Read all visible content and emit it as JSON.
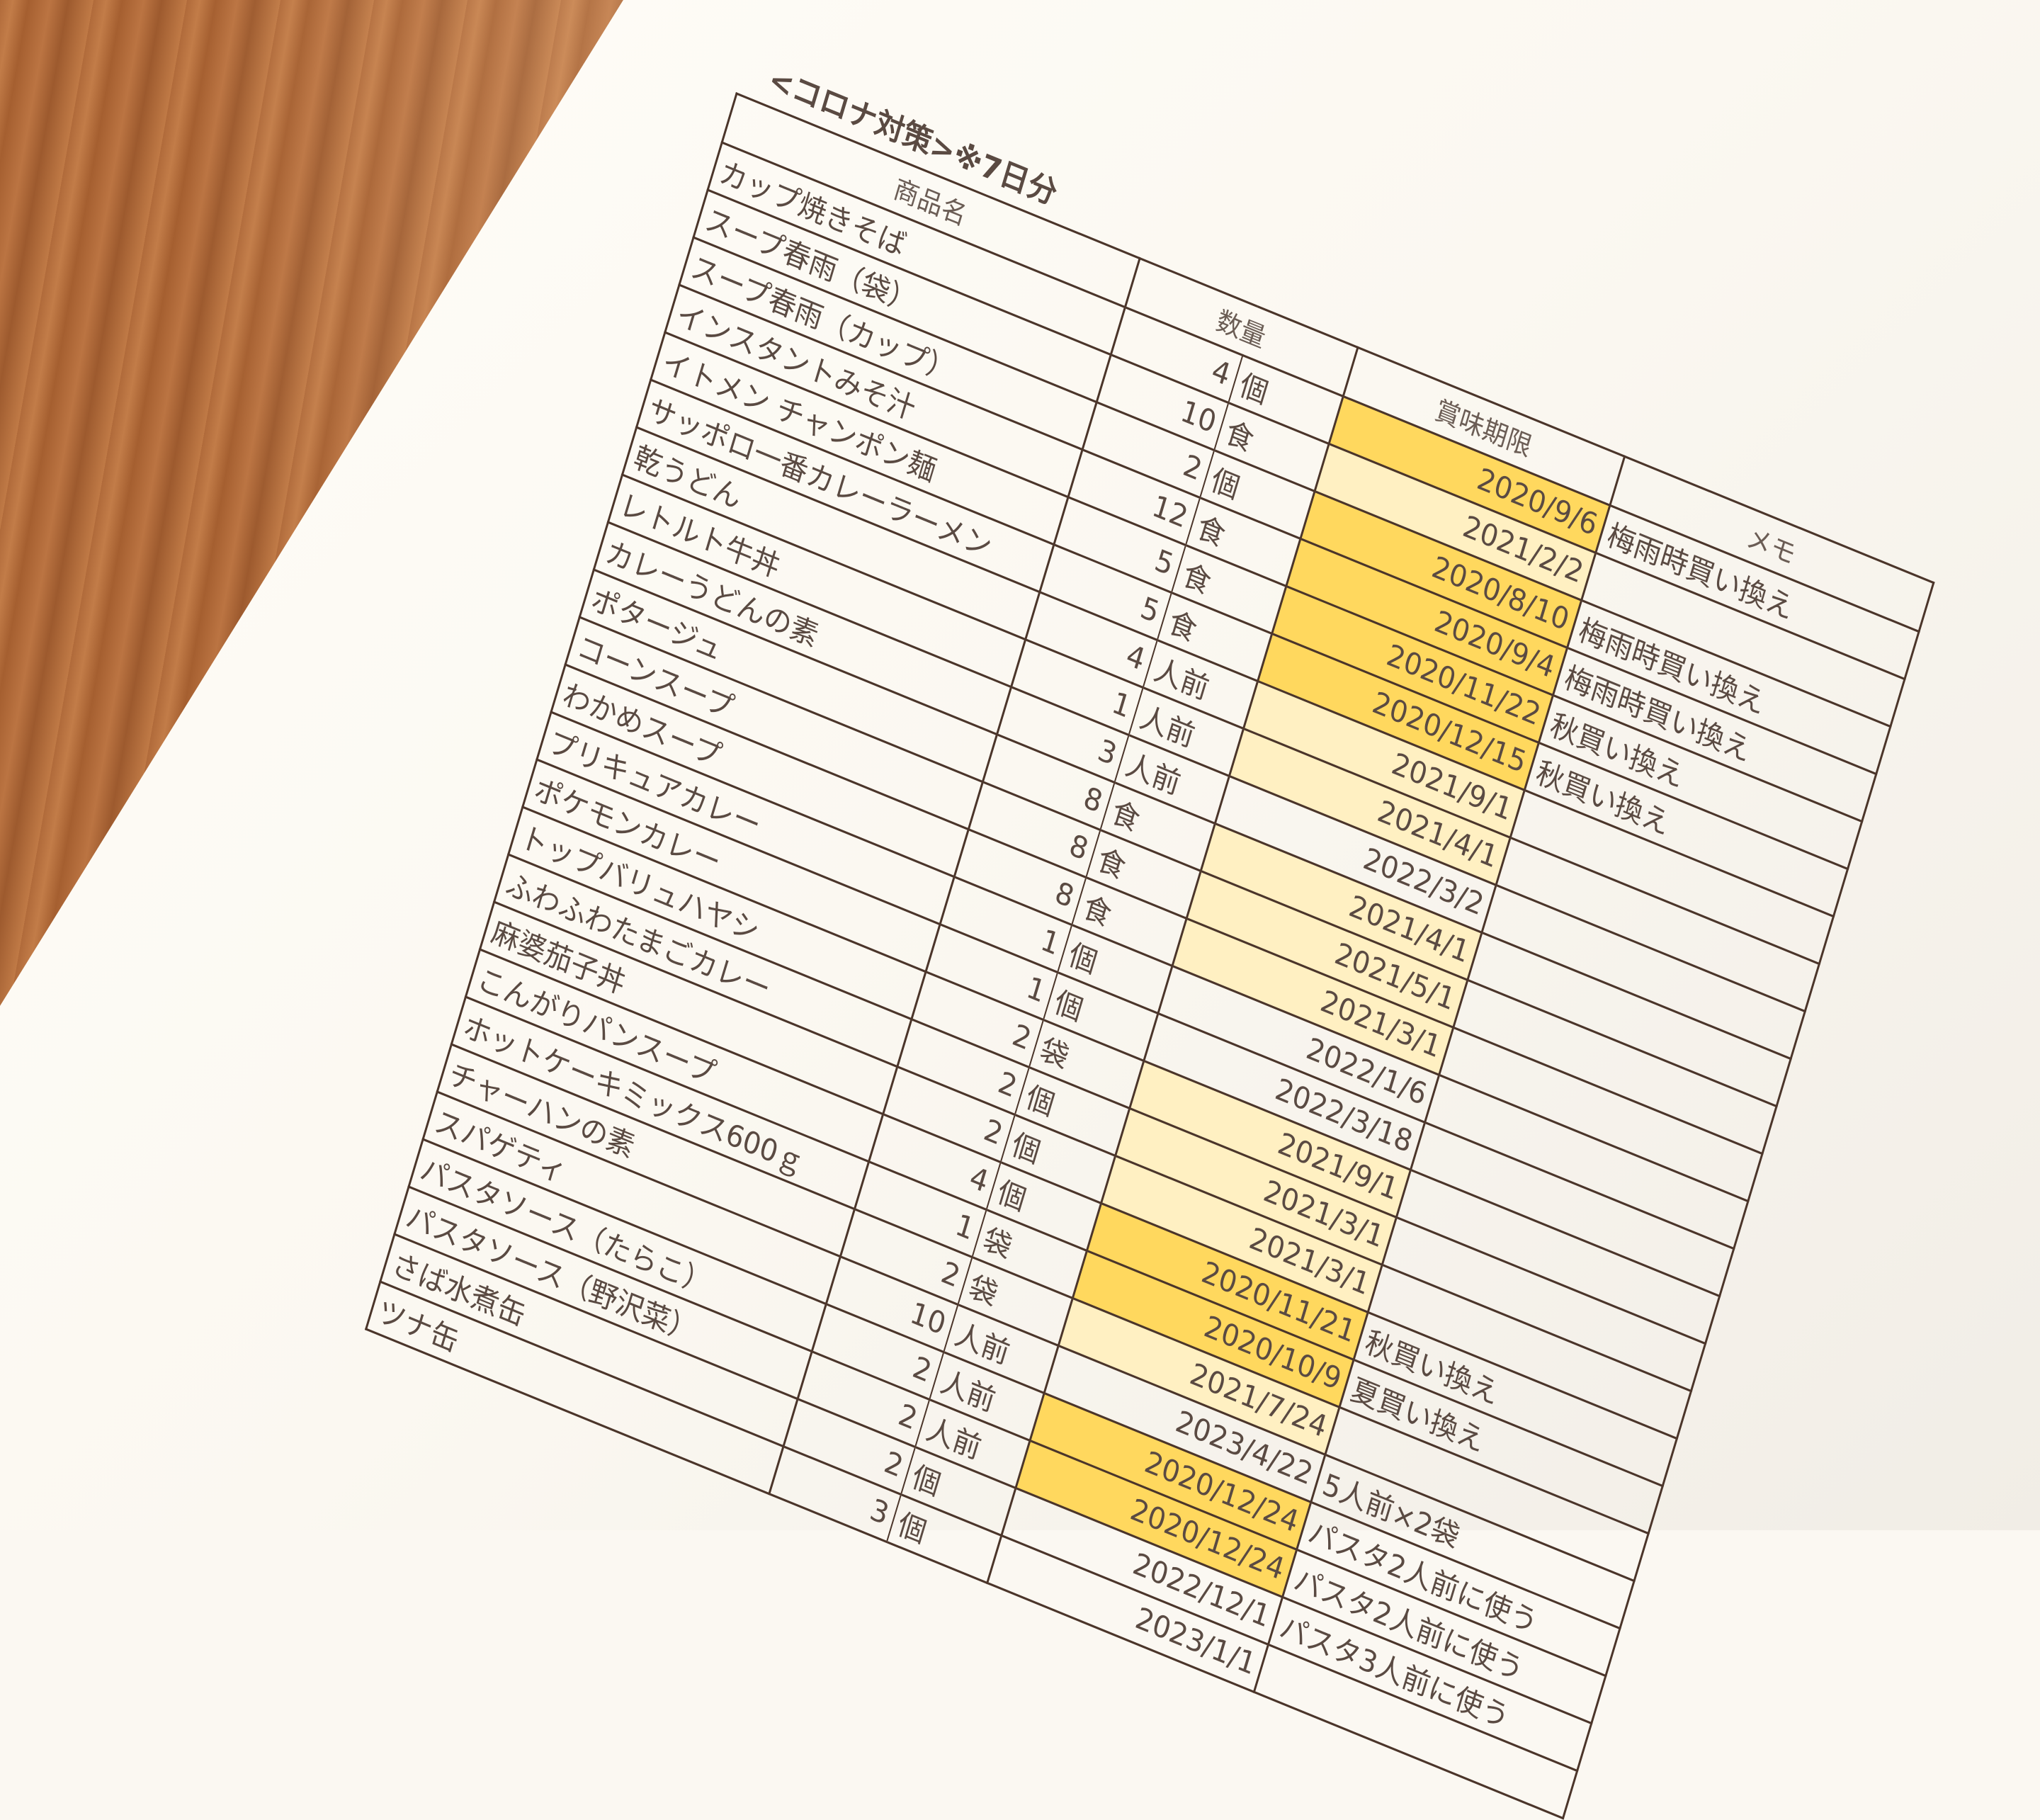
{
  "document": {
    "title": "<コロナ対策>※7日分",
    "headers": {
      "item": "商品名",
      "quantity": "数量",
      "expiry": "賞味期限",
      "memo": "メモ"
    },
    "highlight_colors": {
      "expired_soon": "#ffd85e",
      "light": "#fff0c2"
    },
    "rows": [
      {
        "item": "カップ焼きそば",
        "qty": "4",
        "unit": "個",
        "expiry": "2020/9/6",
        "memo": "梅雨時買い換え",
        "hl": 2
      },
      {
        "item": "スープ春雨（袋）",
        "qty": "10",
        "unit": "食",
        "expiry": "2021/2/2",
        "memo": "",
        "hl": 1
      },
      {
        "item": "スープ春雨（カップ）",
        "qty": "2",
        "unit": "個",
        "expiry": "2020/8/10",
        "memo": "梅雨時買い換え",
        "hl": 2
      },
      {
        "item": "インスタントみそ汁",
        "qty": "12",
        "unit": "食",
        "expiry": "2020/9/4",
        "memo": "梅雨時買い換え",
        "hl": 2
      },
      {
        "item": "イトメン チャンポン麺",
        "qty": "5",
        "unit": "食",
        "expiry": "2020/11/22",
        "memo": "秋買い換え",
        "hl": 2
      },
      {
        "item": "サッポロ一番カレーラーメン",
        "qty": "5",
        "unit": "食",
        "expiry": "2020/12/15",
        "memo": "秋買い換え",
        "hl": 2
      },
      {
        "item": "乾うどん",
        "qty": "4",
        "unit": "人前",
        "expiry": "2021/9/1",
        "memo": "",
        "hl": 1
      },
      {
        "item": "レトルト牛丼",
        "qty": "1",
        "unit": "人前",
        "expiry": "2021/4/1",
        "memo": "",
        "hl": 1
      },
      {
        "item": "カレーうどんの素",
        "qty": "3",
        "unit": "人前",
        "expiry": "2022/3/2",
        "memo": "",
        "hl": 0
      },
      {
        "item": "ポタージュ",
        "qty": "8",
        "unit": "食",
        "expiry": "2021/4/1",
        "memo": "",
        "hl": 1
      },
      {
        "item": "コーンスープ",
        "qty": "8",
        "unit": "食",
        "expiry": "2021/5/1",
        "memo": "",
        "hl": 1
      },
      {
        "item": "わかめスープ",
        "qty": "8",
        "unit": "食",
        "expiry": "2021/3/1",
        "memo": "",
        "hl": 1
      },
      {
        "item": "プリキュアカレー",
        "qty": "1",
        "unit": "個",
        "expiry": "2022/1/6",
        "memo": "",
        "hl": 0
      },
      {
        "item": "ポケモンカレー",
        "qty": "1",
        "unit": "個",
        "expiry": "2022/3/18",
        "memo": "",
        "hl": 0
      },
      {
        "item": "トップバリュハヤシ",
        "qty": "2",
        "unit": "袋",
        "expiry": "2021/9/1",
        "memo": "",
        "hl": 1
      },
      {
        "item": "ふわふわたまごカレー",
        "qty": "2",
        "unit": "個",
        "expiry": "2021/3/1",
        "memo": "",
        "hl": 1
      },
      {
        "item": "麻婆茄子丼",
        "qty": "2",
        "unit": "個",
        "expiry": "2021/3/1",
        "memo": "",
        "hl": 1
      },
      {
        "item": "こんがりパンスープ",
        "qty": "4",
        "unit": "個",
        "expiry": "2020/11/21",
        "memo": "秋買い換え",
        "hl": 2
      },
      {
        "item": "ホットケーキミックス600ｇ",
        "qty": "1",
        "unit": "袋",
        "expiry": "2020/10/9",
        "memo": "夏買い換え",
        "hl": 2
      },
      {
        "item": "チャーハンの素",
        "qty": "2",
        "unit": "袋",
        "expiry": "2021/7/24",
        "memo": "",
        "hl": 1
      },
      {
        "item": "スパゲティ",
        "qty": "10",
        "unit": "人前",
        "expiry": "2023/4/22",
        "memo": "5人前×2袋",
        "hl": 0
      },
      {
        "item": "パスタソース（たらこ）",
        "qty": "2",
        "unit": "人前",
        "expiry": "2020/12/24",
        "memo": "パスタ2人前に使う",
        "hl": 2
      },
      {
        "item": "パスタソース（野沢菜）",
        "qty": "2",
        "unit": "人前",
        "expiry": "2020/12/24",
        "memo": "パスタ2人前に使う",
        "hl": 2
      },
      {
        "item": "さば水煮缶",
        "qty": "2",
        "unit": "個",
        "expiry": "2022/12/1",
        "memo": "パスタ3人前に使う",
        "hl": 0
      },
      {
        "item": "ツナ缶",
        "qty": "3",
        "unit": "個",
        "expiry": "2023/1/1",
        "memo": "",
        "hl": 0
      }
    ]
  }
}
